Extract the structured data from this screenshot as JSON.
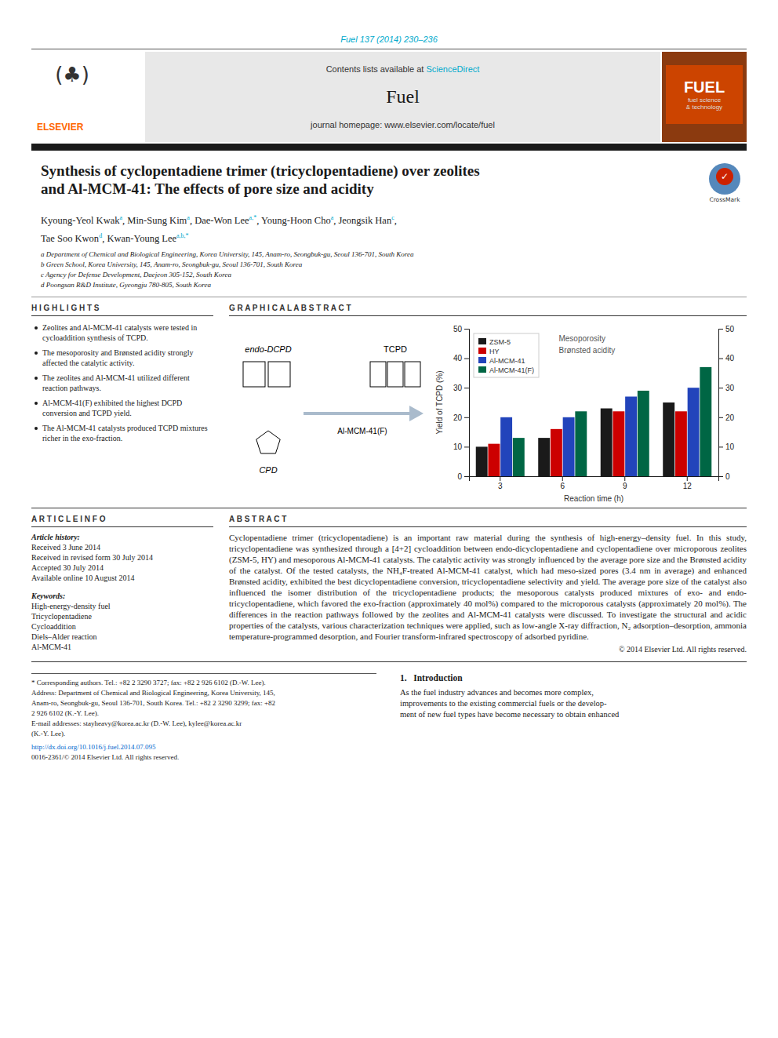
{
  "page": {
    "journal_ref": "Fuel 137 (2014) 230–236",
    "journal_ref_color": "#00aacc",
    "header_bg": "#e8e8e8",
    "elsevier": "ELSEVIER",
    "elsevier_logo": "(♣)",
    "header_text1": "Contents lists available at ",
    "header_sciencedirect": "ScienceDirect",
    "header_sciencedirect_color": "#00aacc",
    "journal_name": "Fuel",
    "header_text2": "journal homepage: www.elsevier.com/locate/fuel",
    "cover_title": "FUEL",
    "cover_sub1": "fuel science",
    "cover_sub2": "& technology",
    "thick_bar_color": "#1a1a1a",
    "title_line1": "Synthesis of cyclopentadiene trimer (tricyclopentadiene) over zeolites",
    "title_line2": "and Al-MCM-41: The effects of pore size and acidity",
    "crossmark_check": "✓",
    "crossmark_label": "CrossMark",
    "authors": [
      [
        {
          "text": "Kyoung-Yeol Kwak",
          "sup": "a"
        },
        {
          "text": ", Min-Sung Kim",
          "sup": "a"
        },
        {
          "text": ", Dae-Won Lee",
          "sup": "a,*"
        },
        {
          "text": ", Young-Hoon Cho",
          "sup": "a"
        },
        {
          "text": ", Jeongsik Han",
          "sup": "c"
        },
        {
          "text": ","
        }
      ],
      [
        {
          "text": "Tae Soo Kwon",
          "sup": "d"
        },
        {
          "text": ", Kwan-Young Lee",
          "sup": "a,b,*"
        }
      ]
    ],
    "affiliations": [
      "a Department of Chemical and Biological Engineering, Korea University, 145, Anam-ro, Seongbuk-gu, Seoul 136-701, South Korea",
      "b Green School, Korea University, 145, Anam-ro, Seongbuk-gu, Seoul 136-701, South Korea",
      "c Agency for Defense Development, Daejeon 305-152, South Korea",
      "d Poongsan R&D Institute, Gyeongju 780-805, South Korea"
    ],
    "highlights_title": "H I G H L I G H T S",
    "highlights": [
      "Zeolites and Al-MCM-41 catalysts were tested in cycloaddition synthesis of TCPD.",
      "The mesoporosity and Brønsted acidity strongly affected the catalytic activity.",
      "The zeolites and Al-MCM-41 utilized different reaction pathways.",
      "Al-MCM-41(F) exhibited the highest DCPD conversion and TCPD yield.",
      "The Al-MCM-41 catalysts produced TCPD mixtures richer in the exo-fraction."
    ],
    "graphical_abstract_title": "G R A P H I C A L   A B S T R A C T",
    "scheme_labels": {
      "reactant": "endo-DCPD",
      "co_reactant": "CPD",
      "catalyst": "Al-MCM-41(F)",
      "product": "TCPD"
    },
    "article_info_title": "A R T I C L E   I N F O",
    "article_history_label": "Article history:",
    "article_dates": [
      "Received 3 June 2014",
      "Received in revised form 30 July 2014",
      "Accepted 30 July 2014",
      "Available online 10 August 2014"
    ],
    "keywords_label": "Keywords:",
    "keywords": [
      "High-energy-density fuel",
      "Tricyclopentadiene",
      "Cycloaddition",
      "Diels–Alder reaction",
      "Al-MCM-41"
    ],
    "abstract_title": "A B S T R A C T",
    "abstract_text": "Cyclopentadiene trimer (tricyclopentadiene) is an important raw material during the synthesis of high-energy–density fuel. In this study, tricyclopentadiene was synthesized through a [4+2] cycloaddition between endo-dicyclopentadiene and cyclopentadiene over microporous zeolites (ZSM-5, HY) and mesoporous Al-MCM-41 catalysts. The catalytic activity was strongly influenced by the average pore size and the Brønsted acidity of the catalyst. Of the tested catalysts, the NH₄F-treated Al-MCM-41 catalyst, which had meso-sized pores (3.4 nm in average) and enhanced Brønsted acidity, exhibited the best dicyclopentadiene conversion, tricyclopentadiene selectivity and yield. The average pore size of the catalyst also influenced the isomer distribution of the tricyclopentadiene products; the mesoporous catalysts produced mixtures of exo- and endo-tricyclopentadiene, which favored the exo-fraction (approximately 40 mol%) compared to the microporous catalysts (approximately 20 mol%). The differences in the reaction pathways followed by the zeolites and Al-MCM-41 catalysts were discussed. To investigate the structural and acidic properties of the catalysts, various characterization techniques were applied, such as low-angle X-ray diffraction, N₂ adsorption–desorption, ammonia temperature-programmed desorption, and Fourier transform-infrared spectroscopy of adsorbed pyridine.",
    "copyright": "© 2014 Elsevier Ltd. All rights reserved.",
    "footnotes": [
      "* Corresponding authors. Tel.: +82 2 3290 3727; fax: +82 2 926 6102 (D.-W. Lee).",
      "Address: Department of Chemical and Biological Engineering, Korea University, 145,",
      "Anam-ro, Seongbuk-gu, Seoul 136-701, South Korea. Tel.: +82 2 3290 3299; fax: +82",
      "2 926 6102 (K.-Y. Lee).",
      "E-mail addresses: stayheavy@korea.ac.kr (D.-W. Lee), kylee@korea.ac.kr",
      "(K.-Y. Lee)."
    ],
    "doi_text": "http://dx.doi.org/10.1016/j.fuel.2014.07.095",
    "footer_text": "0016-2361/© 2014 Elsevier Ltd. All rights reserved.",
    "intro_title": "1.   Introduction",
    "intro_lines": [
      "As the fuel industry advances and becomes more complex,",
      "improvements to the existing commercial fuels or the develop-",
      "ment of new fuel types have become necessary to obtain enhanced"
    ]
  },
  "chart_data": {
    "type": "bar",
    "categories": [
      3,
      6,
      9,
      12
    ],
    "series": [
      {
        "name": "ZSM-5",
        "color": "#1a1a1a",
        "values": [
          10,
          13,
          23,
          25
        ]
      },
      {
        "name": "HY",
        "color": "#cc0000",
        "values": [
          11,
          16,
          22,
          22
        ]
      },
      {
        "name": "Al-MCM-41",
        "color": "#2244bb",
        "values": [
          20,
          20,
          27,
          30
        ]
      },
      {
        "name": "Al-MCM-41(F)",
        "color": "#006644",
        "values": [
          13,
          22,
          29,
          37
        ]
      }
    ],
    "xlabel": "Reaction time (h)",
    "ylabel": "Yield of TCPD (%)",
    "ylim": [
      0,
      50
    ],
    "yticks": [
      0,
      10,
      20,
      30,
      40,
      50
    ],
    "y2lim": [
      0,
      50
    ],
    "y2ticks": [
      0,
      10,
      20,
      30,
      40,
      50
    ],
    "legend": "upper left",
    "grid": false,
    "annotations": [
      "Mesoporosity",
      "Brønsted acidity"
    ]
  }
}
